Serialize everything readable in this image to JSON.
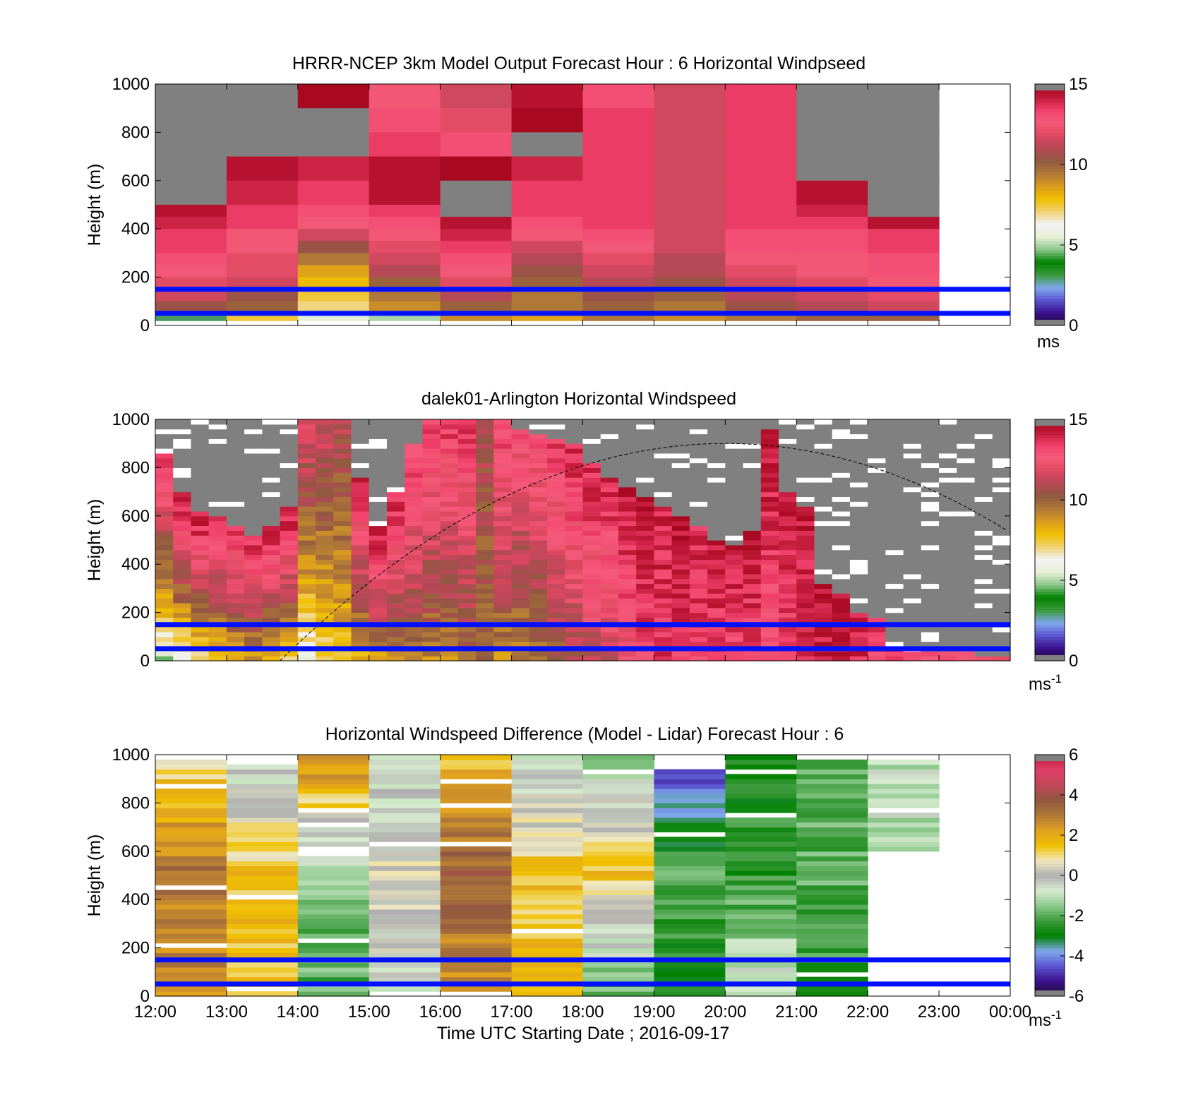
{
  "figure": {
    "xlabel": "Time UTC  Starting Date ; 2016-09-17",
    "x_tick_labels": [
      "12:00",
      "13:00",
      "14:00",
      "15:00",
      "16:00",
      "17:00",
      "18:00",
      "19:00",
      "20:00",
      "21:00",
      "22:00",
      "23:00",
      "00:00"
    ],
    "ylabel": "Height (m)",
    "y_tick_labels": [
      "0",
      "200",
      "400",
      "600",
      "800",
      "1000"
    ]
  },
  "colors": {
    "reference_lines": "#0010ff",
    "missing": "#808080",
    "wind_colormap": [
      "#1a0a30",
      "#3b0f8c",
      "#5a55d0",
      "#7fa8ec",
      "#3a9a3a",
      "#008000",
      "#8cc88c",
      "#e8f0d8",
      "#f3f3f3",
      "#f0d070",
      "#f0c000",
      "#d99a20",
      "#b07838",
      "#905840",
      "#b84858",
      "#e04860",
      "#f55a7a",
      "#f0406a",
      "#c01838",
      "#a80820",
      "#909090"
    ],
    "diff_colormap": [
      "#909090",
      "#1a0a30",
      "#3b0f8c",
      "#5a55d0",
      "#7fa8ec",
      "#008000",
      "#3a9a3a",
      "#8cc88c",
      "#d8ecd0",
      "#b0b0b0",
      "#f0e8c0",
      "#f0c000",
      "#e0a020",
      "#b07838",
      "#905840",
      "#c04858",
      "#e0406a",
      "#c01838",
      "#909090"
    ]
  },
  "chart_data": [
    {
      "type": "heatmap",
      "title": "HRRR-NCEP 3km Model Output   Forecast Hour : 6 Horizontal Windpseed",
      "xlabel": "",
      "ylabel": "Height (m)",
      "x_categories": [
        "12:00",
        "13:00",
        "14:00",
        "15:00",
        "16:00",
        "17:00",
        "18:00",
        "19:00",
        "20:00",
        "21:00",
        "22:00"
      ],
      "xlim": [
        "12:00",
        "00:00"
      ],
      "ylim": [
        0,
        1000
      ],
      "colorbar": {
        "range": [
          0,
          15
        ],
        "ticks": [
          "0",
          "5",
          "10",
          "15"
        ],
        "unit": "ms"
      },
      "reference_heights_m": [
        50,
        150
      ],
      "heights_m": [
        1000,
        900,
        800,
        700,
        600,
        500,
        450,
        400,
        350,
        300,
        250,
        200,
        150,
        100,
        50
      ],
      "windspeed_by_hour_ms": [
        [
          null,
          null,
          null,
          null,
          null,
          14.5,
          14,
          13.5,
          13.5,
          13,
          12.5,
          12,
          11.5,
          10.5,
          3
        ],
        [
          null,
          null,
          null,
          14.5,
          14,
          13.5,
          13.5,
          12.5,
          12.5,
          12,
          12,
          11.5,
          10.5,
          10,
          7.5
        ],
        [
          15,
          null,
          null,
          14,
          13.5,
          13,
          12.5,
          11.5,
          10.5,
          9.5,
          8.5,
          8,
          7.5,
          7,
          5.5
        ],
        [
          12.5,
          13,
          13.5,
          14.5,
          14.5,
          13.5,
          13,
          12.5,
          12,
          11.5,
          11,
          10,
          9.5,
          9,
          5
        ],
        [
          11.5,
          12,
          13,
          15,
          null,
          null,
          14.5,
          14,
          13.5,
          13,
          12.5,
          12,
          11,
          10,
          9
        ],
        [
          14.5,
          15,
          null,
          14,
          13.5,
          13.5,
          13,
          12.5,
          11.5,
          11,
          10.5,
          10,
          9.5,
          9.5,
          8.5
        ],
        [
          13,
          13.5,
          13.5,
          13.5,
          13.5,
          13.5,
          13.5,
          13,
          12.5,
          12,
          11.5,
          11,
          10.5,
          10,
          9.5
        ],
        [
          11.5,
          11.5,
          11.5,
          11.5,
          11.5,
          11.5,
          11.5,
          11.5,
          11.5,
          11,
          11,
          10.5,
          10,
          9.5,
          9
        ],
        [
          13.5,
          13.5,
          13.5,
          13.5,
          13.5,
          13.5,
          13.5,
          13,
          13,
          12.5,
          12,
          11.5,
          11,
          10.5,
          9.5
        ],
        [
          null,
          null,
          null,
          null,
          14.5,
          14,
          13.5,
          13,
          13,
          12.5,
          12.5,
          12,
          11.5,
          11,
          10
        ],
        [
          null,
          null,
          null,
          null,
          null,
          null,
          14.5,
          13.5,
          13.5,
          13,
          13,
          12.5,
          12,
          11.5,
          10
        ]
      ]
    },
    {
      "type": "heatmap",
      "title": "dalek01-Arlington  Horizontal Windspeed",
      "xlabel": "",
      "ylabel": "Height (m)",
      "xlim": [
        "12:00",
        "00:00"
      ],
      "ylim": [
        0,
        1000
      ],
      "colorbar": {
        "range": [
          0,
          15
        ],
        "ticks": [
          "0",
          "5",
          "10",
          "15"
        ],
        "unit": "ms",
        "unit_exponent": "-1"
      },
      "reference_heights_m": [
        50,
        150
      ],
      "time_hours_utc": [
        12.0,
        12.25,
        12.5,
        12.75,
        13.0,
        13.25,
        13.5,
        13.75,
        14.0,
        14.25,
        14.5,
        14.75,
        15.0,
        15.25,
        15.5,
        15.75,
        16.0,
        16.25,
        16.5,
        16.75,
        17.0,
        17.25,
        17.5,
        17.75,
        18.0,
        18.25,
        18.5,
        18.75,
        19.0,
        19.25,
        19.5,
        19.75,
        20.0,
        20.25,
        20.5,
        20.75,
        21.0,
        21.25,
        21.5,
        21.75,
        22.0,
        22.25,
        22.5,
        22.75,
        23.0,
        23.25,
        23.5,
        23.75
      ],
      "valid_data_top_m": [
        860,
        700,
        620,
        600,
        560,
        520,
        560,
        640,
        1000,
        1000,
        1000,
        760,
        560,
        700,
        900,
        1000,
        1000,
        1000,
        1000,
        1000,
        960,
        940,
        920,
        900,
        820,
        760,
        720,
        680,
        640,
        600,
        560,
        500,
        470,
        540,
        950,
        700,
        640,
        310,
        280,
        200,
        180,
        60,
        40,
        40,
        40,
        30,
        20,
        20
      ],
      "windspeed_bottom_ms": [
        5,
        6,
        6.5,
        7.5,
        8,
        8.5,
        7.5,
        7,
        6,
        7,
        7.5,
        8,
        8.5,
        9,
        9.5,
        9,
        9,
        9.5,
        9.5,
        9,
        9,
        9.5,
        10,
        10.5,
        11,
        11.5,
        12,
        13,
        13.5,
        13.5,
        13.5,
        13,
        13,
        13,
        12.5,
        13,
        13.5,
        14,
        14,
        14,
        13.5,
        13,
        13,
        13,
        12.5,
        12,
        12,
        12
      ],
      "windspeed_top_ms": [
        14,
        14.5,
        14.5,
        14,
        14,
        14,
        14.5,
        14.5,
        12,
        11.5,
        11,
        14,
        14.5,
        14,
        13.5,
        13.5,
        13.5,
        13.5,
        11,
        13.5,
        13,
        13,
        13.5,
        14,
        14,
        14,
        14.5,
        14.5,
        14,
        14.5,
        14,
        14.5,
        14.5,
        14.5,
        14.5,
        14.5,
        14.5,
        14.5,
        14.5,
        14,
        14,
        14,
        14,
        14,
        14,
        14,
        14,
        14
      ],
      "dashed_curve": {
        "peak_time_utc": "20:00",
        "peak_height_m": 900,
        "zero_time_utc": "13:45"
      }
    },
    {
      "type": "heatmap",
      "title": "Horizontal Windspeed Difference (Model - Lidar) Forecast Hour : 6",
      "xlabel": "Time UTC  Starting Date ; 2016-09-17",
      "ylabel": "Height (m)",
      "x_categories": [
        "12:00",
        "13:00",
        "14:00",
        "15:00",
        "16:00",
        "17:00",
        "18:00",
        "19:00",
        "20:00",
        "21:00",
        "22:00"
      ],
      "xlim": [
        "12:00",
        "00:00"
      ],
      "ylim": [
        0,
        1000
      ],
      "colorbar": {
        "range": [
          -6,
          6
        ],
        "ticks": [
          "-6",
          "-4",
          "-2",
          "0",
          "2",
          "4",
          "6"
        ],
        "unit": "ms",
        "unit_exponent": "-1"
      },
      "reference_heights_m": [
        50,
        150
      ],
      "valid_top_m": [
        970,
        960,
        1000,
        1000,
        1000,
        1000,
        1000,
        940,
        1000,
        970,
        970
      ],
      "diff_bottom_ms": [
        2.5,
        1.5,
        -2,
        -0.5,
        2.5,
        1.5,
        -2,
        -3,
        -0.5,
        -2.5,
        null
      ],
      "diff_mid_ms": [
        3,
        1.5,
        -1.5,
        0.5,
        3.5,
        1.5,
        1.5,
        -2,
        -2.5,
        -2,
        null
      ],
      "diff_top_ms": [
        1,
        -1,
        3,
        -1,
        1.5,
        -1,
        -1.5,
        -5,
        -2.5,
        -2,
        -1
      ]
    }
  ]
}
